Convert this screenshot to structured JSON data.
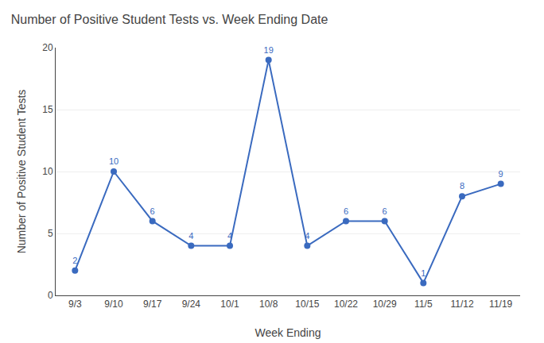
{
  "chart_data": {
    "type": "line",
    "title": "Number of Positive Student Tests vs. Week Ending Date",
    "x_label": "Week Ending",
    "y_label": "Number of Positive Student Tests",
    "categories": [
      "9/3",
      "9/10",
      "9/17",
      "9/24",
      "10/1",
      "10/8",
      "10/15",
      "10/22",
      "10/29",
      "11/5",
      "11/12",
      "11/19"
    ],
    "values": [
      2,
      10,
      6,
      4,
      4,
      19,
      4,
      6,
      6,
      1,
      8,
      9
    ],
    "color": "#3a6abf",
    "marker": "circle",
    "ylim": [
      0,
      20
    ],
    "yticks": [
      0,
      5,
      10,
      15,
      20
    ],
    "grid": true,
    "data_labels": true
  }
}
